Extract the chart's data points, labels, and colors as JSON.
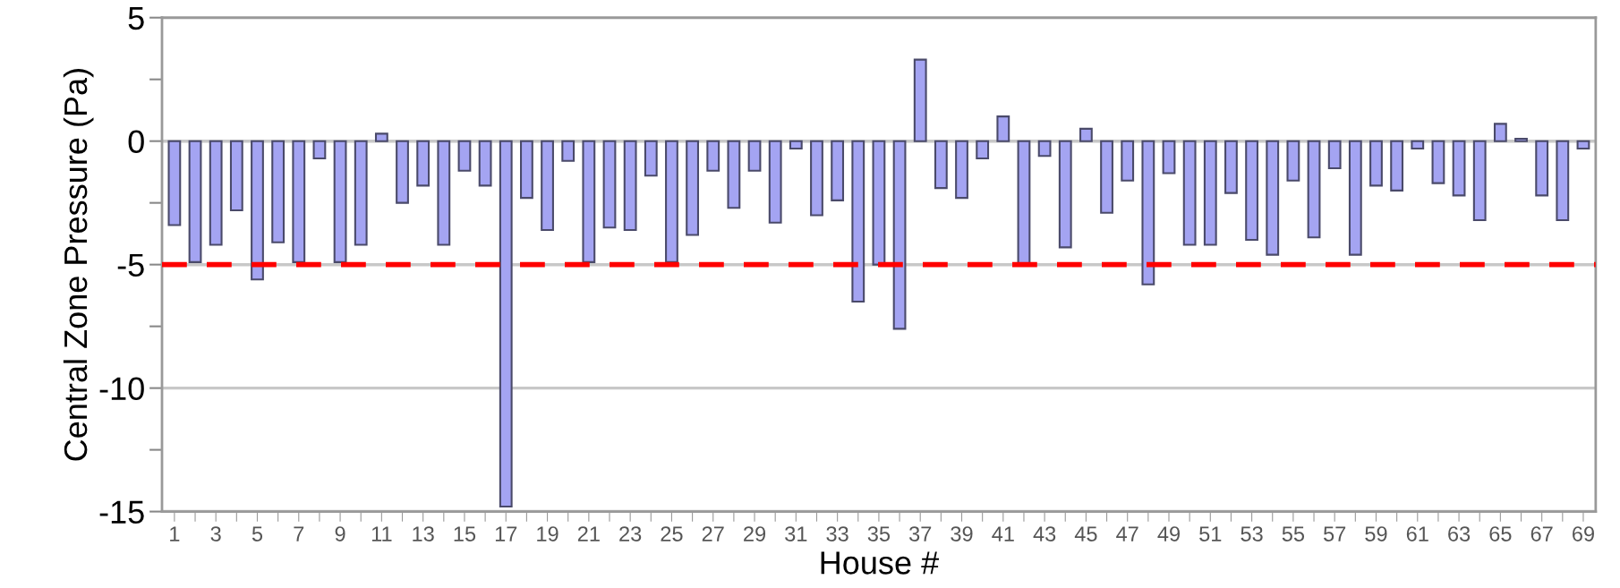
{
  "chart_data": {
    "type": "bar",
    "xlabel": "House #",
    "ylabel": "Central Zone Pressure (Pa)",
    "categories": [
      "1",
      null,
      "3",
      null,
      "5",
      null,
      "7",
      null,
      "9",
      null,
      "11",
      null,
      "13",
      null,
      "15",
      null,
      "17",
      null,
      "19",
      null,
      "21",
      null,
      "23",
      null,
      "25",
      null,
      "27",
      null,
      "29",
      null,
      "31",
      null,
      "33",
      null,
      "35",
      null,
      "37",
      null,
      "39",
      null,
      "41",
      null,
      "43",
      null,
      "45",
      null,
      "47",
      null,
      "49",
      null,
      "51",
      null,
      "53",
      null,
      "55",
      null,
      "57",
      null,
      "59",
      null,
      "61",
      null,
      "63",
      null,
      "65",
      null,
      "67",
      null,
      "69"
    ],
    "series": [
      {
        "color": "#a4a4f2",
        "values": [
          -3.4,
          -4.9,
          -4.2,
          -2.8,
          -5.6,
          -4.1,
          -4.9,
          -0.7,
          -4.9,
          -4.2,
          0.3,
          -2.5,
          -1.8,
          -4.2,
          -1.2,
          -1.8,
          -14.8,
          -2.3,
          -3.6,
          -0.8,
          -4.9,
          -3.5,
          -3.6,
          -1.4,
          -4.9,
          -3.8,
          -1.2,
          -2.7,
          -1.2,
          -3.3,
          -0.3,
          -3.0,
          -2.4,
          -6.5,
          -5.0,
          -7.6,
          3.3,
          -1.9,
          -2.3,
          -0.7,
          1.0,
          -5.0,
          -0.6,
          -4.3,
          0.5,
          -2.9,
          -1.6,
          -5.8,
          -1.3,
          -4.2,
          -4.2,
          -2.1,
          -4.0,
          -4.6,
          -1.6,
          -3.9,
          -1.1,
          -4.6,
          -1.8,
          -2.0,
          -0.3,
          -1.7,
          -2.2,
          -3.2,
          0.7,
          0.1,
          -2.2,
          -3.2,
          -0.3
        ]
      }
    ],
    "ylim": [
      -15,
      5
    ],
    "yticks": [
      -15,
      {
        "value": -12.5,
        "label": null
      },
      -10,
      {
        "value": -7.5,
        "label": null
      },
      -5,
      {
        "value": -2.5,
        "label": null
      },
      0,
      {
        "value": 2.5,
        "label": null
      },
      5
    ],
    "grid": "y",
    "ref_lines": [
      {
        "axis": "y",
        "value": -5,
        "color": "#ff0000",
        "line_style": "dashed"
      }
    ]
  }
}
